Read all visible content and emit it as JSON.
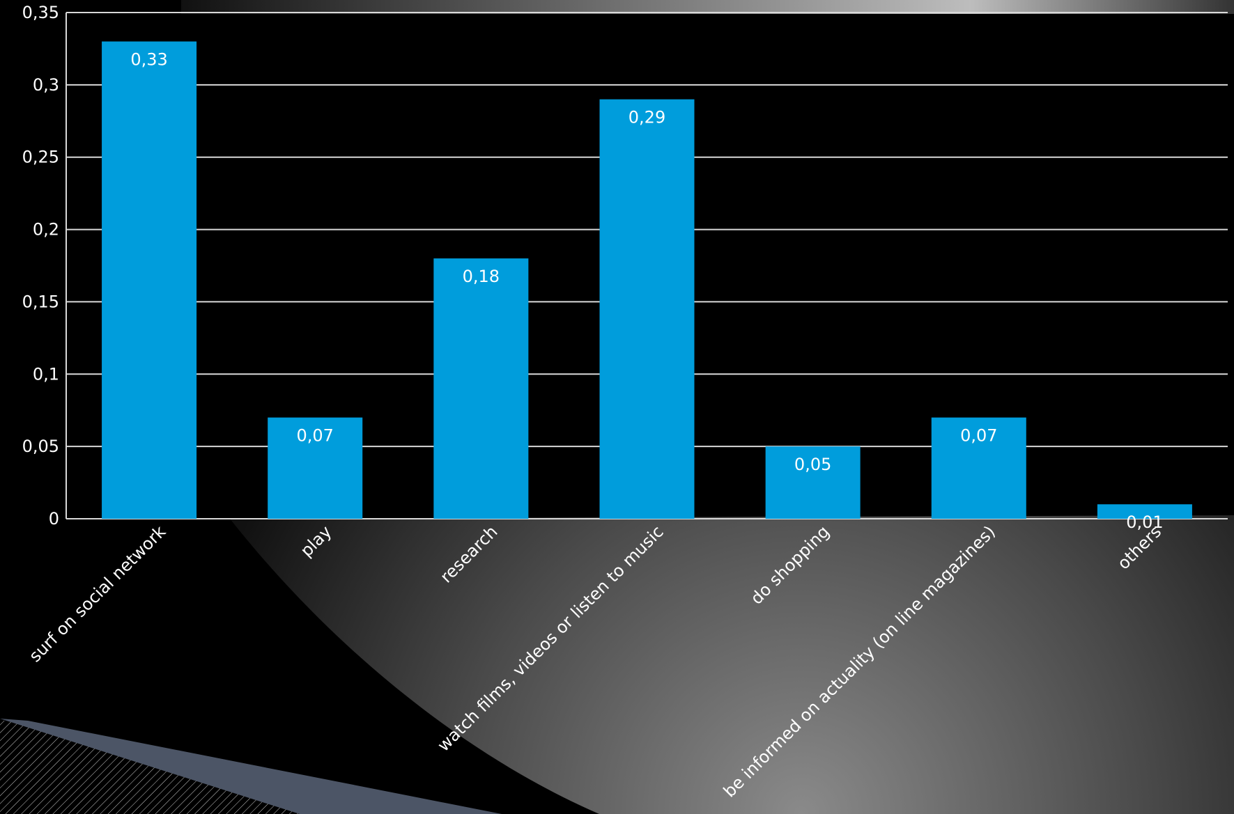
{
  "chart_data": {
    "type": "bar",
    "categories": [
      "surf on social network",
      "play",
      "research",
      "watch films, videos or listen to music",
      "do shopping",
      "be informed on actuality (on line magazines)",
      "others"
    ],
    "values": [
      0.33,
      0.07,
      0.18,
      0.29,
      0.05,
      0.07,
      0.01
    ],
    "data_labels": [
      "0,33",
      "0,07",
      "0,18",
      "0,29",
      "0,05",
      "0,07",
      "0,01"
    ],
    "y_ticks": [
      "0",
      "0,05",
      "0,1",
      "0,15",
      "0,2",
      "0,25",
      "0,3",
      "0,35"
    ],
    "ylim": [
      0,
      0.35
    ],
    "y_tick_step": 0.05,
    "title": "",
    "xlabel": "",
    "ylabel": "",
    "grid": true,
    "legend": "none",
    "colors": {
      "bar": "#009ddc",
      "grid": "#d9d9d9",
      "text": "#ffffff",
      "background": "#000000"
    }
  }
}
